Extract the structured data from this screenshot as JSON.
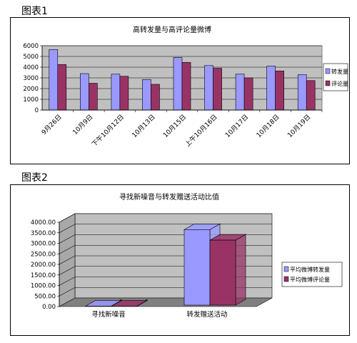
{
  "figure1": {
    "label": "图表1",
    "chart_data": {
      "type": "bar",
      "title": "高转发量与高评论量微博",
      "categories": [
        "9月26日",
        "10月9日",
        "下午10月12日",
        "10月13日",
        "10月15日",
        "上午10月16日",
        "10月17日",
        "10月18日",
        "10月19日"
      ],
      "series": [
        {
          "name": "转发量",
          "values": [
            5650,
            3400,
            3350,
            2850,
            4900,
            4150,
            3350,
            4100,
            3300
          ]
        },
        {
          "name": "评论量",
          "values": [
            4250,
            2500,
            3150,
            2400,
            4450,
            3900,
            3000,
            3650,
            2750
          ]
        }
      ],
      "yticks": [
        "0",
        "1000",
        "2000",
        "3000",
        "4000",
        "5000",
        "6000"
      ],
      "ylim": [
        0,
        6000
      ],
      "legend": "right",
      "grid": true,
      "colors": {
        "转发量": "#9999ff",
        "评论量": "#993366",
        "plot_bg": "#c0c0c0"
      }
    }
  },
  "figure2": {
    "label": "图表2",
    "chart_data": {
      "type": "bar",
      "title": "寻找新噪音与转发赠送活动比值",
      "categories": [
        "寻找新噪音",
        "转发赠送活动"
      ],
      "series": [
        {
          "name": "平均微博转发量",
          "values": [
            25,
            3650
          ]
        },
        {
          "name": "平均微博评论量",
          "values": [
            15,
            3150
          ]
        }
      ],
      "yticks": [
        "0.00",
        "500.00",
        "1000.00",
        "1500.00",
        "2000.00",
        "2500.00",
        "3000.00",
        "3500.00",
        "4000.00"
      ],
      "ylim": [
        0,
        4000
      ],
      "legend": "right",
      "grid": true,
      "colors": {
        "平均微博转发量": "#9999ff",
        "平均微博评论量": "#993366",
        "plot_bg": "#c0c0c0",
        "floor": "#808080"
      }
    }
  }
}
